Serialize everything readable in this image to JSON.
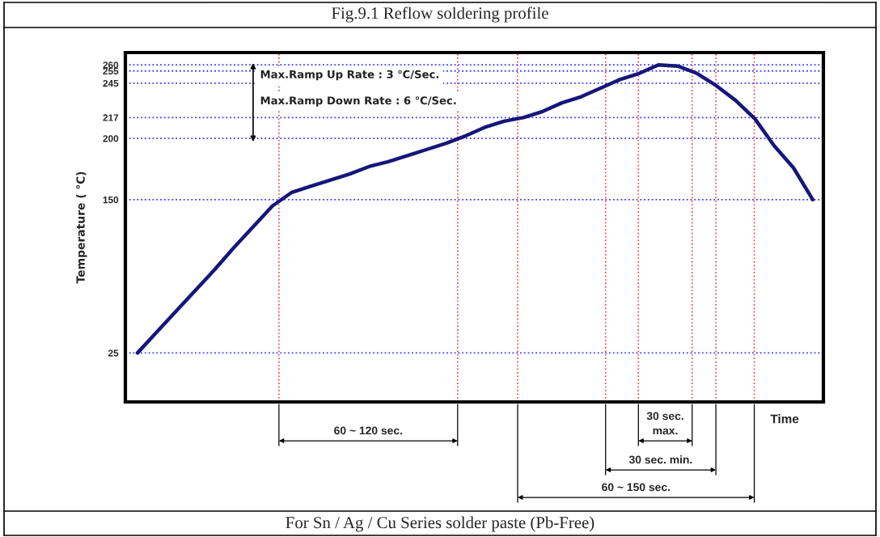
{
  "chart_data": {
    "type": "line",
    "title": "Fig.9.1 Reflow soldering profile",
    "xlabel": "Time",
    "ylabel": "Temperature ( ℃)",
    "categories": [
      null,
      null,
      null,
      null,
      null,
      null,
      null,
      null,
      null,
      null,
      null,
      null,
      null,
      null,
      null,
      null,
      null,
      null,
      null,
      null,
      null,
      null,
      null,
      null,
      null,
      null,
      null,
      null,
      null,
      null,
      null,
      null,
      null,
      null,
      null,
      null
    ],
    "series": [
      {
        "color": "#16167a",
        "values": [
          25,
          42,
          59,
          76,
          93,
          111,
          128,
          145,
          156,
          161,
          166,
          171,
          177,
          181,
          186,
          191,
          196,
          202,
          209,
          214,
          217,
          222,
          229,
          234,
          241,
          248,
          253,
          260,
          259,
          253,
          243,
          231,
          216,
          194,
          176,
          150
        ]
      }
    ],
    "ylim": [
      -15,
      270
    ],
    "yticks": [
      25,
      150,
      200,
      217,
      245,
      255,
      260
    ],
    "grid": true,
    "tick_labels": "y",
    "annotations": [
      "Max.Ramp Up Rate : 3 ℃/Sec.",
      "Max.Ramp Down Rate : 6 ℃/Sec.",
      "60 ~ 120 sec.",
      "30 sec.\nmax.",
      "30 sec. min.",
      "60 ~ 150 sec.",
      "For Sn / Ag / Cu Series solder paste (Pb-Free)"
    ]
  }
}
